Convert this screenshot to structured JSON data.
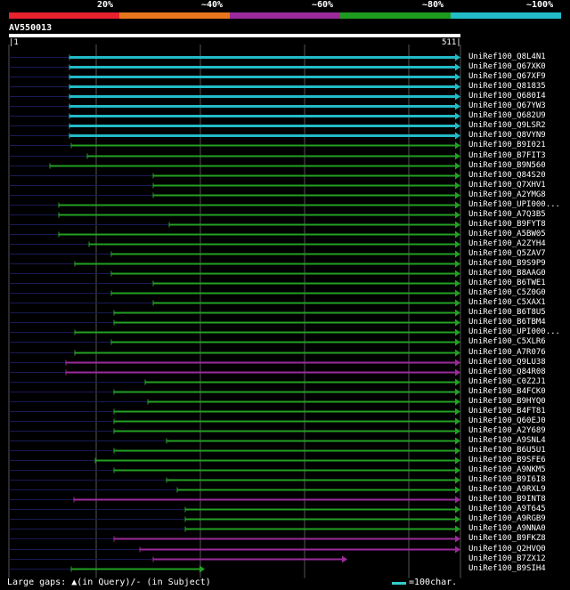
{
  "legend": {
    "segments": [
      {
        "label": "20%",
        "color": "#e8212e"
      },
      {
        "label": "~40%",
        "color": "#e8761c"
      },
      {
        "label": "~60%",
        "color": "#9b2b9b"
      },
      {
        "label": "~80%",
        "color": "#1e9b1e"
      },
      {
        "label": "~100%",
        "color": "#22bbc8"
      }
    ]
  },
  "query": {
    "name": "AV550013",
    "start": "|1",
    "end": "511|"
  },
  "colors": {
    "cyan": "#22bbc8",
    "green": "#22a022",
    "purple": "#9b2b9b",
    "dark": "#1a1a55",
    "grid": "#555555",
    "mark": "#ffff99"
  },
  "hits": [
    {
      "label": "UniRef100_Q8L4N1",
      "color": "cyan",
      "start": 78,
      "end": 517
    },
    {
      "label": "UniRef100_Q67XK0",
      "color": "cyan",
      "start": 78,
      "end": 517
    },
    {
      "label": "UniRef100_Q67XF9",
      "color": "cyan",
      "start": 78,
      "end": 517
    },
    {
      "label": "UniRef100_Q81835",
      "color": "cyan",
      "start": 78,
      "end": 517
    },
    {
      "label": "UniRef100_Q680I4",
      "color": "cyan",
      "start": 78,
      "end": 517
    },
    {
      "label": "UniRef100_Q67YW3",
      "color": "cyan",
      "start": 78,
      "end": 517
    },
    {
      "label": "UniRef100_Q682U9",
      "color": "cyan",
      "start": 78,
      "end": 517
    },
    {
      "label": "UniRef100_Q9LSR2",
      "color": "cyan",
      "start": 78,
      "end": 517
    },
    {
      "label": "UniRef100_Q8VYN9",
      "color": "cyan",
      "start": 78,
      "end": 517
    },
    {
      "label": "UniRef100_B9I021",
      "color": "green",
      "start": 80,
      "end": 517
    },
    {
      "label": "UniRef100_B7FIT3",
      "color": "green",
      "start": 98,
      "end": 517
    },
    {
      "label": "UniRef100_B9N560",
      "color": "green",
      "start": 56,
      "end": 517
    },
    {
      "label": "UniRef100_Q84S20",
      "color": "green",
      "start": 172,
      "end": 517
    },
    {
      "label": "UniRef100_Q7XHV1",
      "color": "green",
      "start": 172,
      "end": 517
    },
    {
      "label": "UniRef100_A2YMG8",
      "color": "green",
      "start": 172,
      "end": 517
    },
    {
      "label": "UniRef100_UPI000...",
      "color": "green",
      "start": 66,
      "end": 517
    },
    {
      "label": "UniRef100_A7Q3B5",
      "color": "green",
      "start": 66,
      "end": 517
    },
    {
      "label": "UniRef100_B9FYT8",
      "color": "green",
      "start": 190,
      "end": 517
    },
    {
      "label": "UniRef100_A5BW05",
      "color": "green",
      "start": 66,
      "end": 517
    },
    {
      "label": "UniRef100_A2ZYH4",
      "color": "green",
      "start": 100,
      "end": 517
    },
    {
      "label": "UniRef100_Q5ZAV7",
      "color": "green",
      "start": 125,
      "end": 517
    },
    {
      "label": "UniRef100_B9S9P9",
      "color": "green",
      "start": 84,
      "end": 517
    },
    {
      "label": "UniRef100_B8AAG0",
      "color": "green",
      "start": 125,
      "end": 517
    },
    {
      "label": "UniRef100_B6TWE1",
      "color": "green",
      "start": 172,
      "end": 517
    },
    {
      "label": "UniRef100_C5Z0G0",
      "color": "green",
      "start": 125,
      "end": 517
    },
    {
      "label": "UniRef100_C5XAX1",
      "color": "green",
      "start": 172,
      "end": 517
    },
    {
      "label": "UniRef100_B6T8U5",
      "color": "green",
      "start": 128,
      "end": 517
    },
    {
      "label": "UniRef100_B6TBM4",
      "color": "green",
      "start": 128,
      "end": 517
    },
    {
      "label": "UniRef100_UPI000...",
      "color": "green",
      "start": 84,
      "end": 517
    },
    {
      "label": "UniRef100_C5XLR6",
      "color": "green",
      "start": 125,
      "end": 517
    },
    {
      "label": "UniRef100_A7R076",
      "color": "green",
      "start": 84,
      "end": 517
    },
    {
      "label": "UniRef100_Q9LU38",
      "color": "purple",
      "start": 74,
      "end": 517
    },
    {
      "label": "UniRef100_Q84R08",
      "color": "purple",
      "start": 74,
      "end": 517
    },
    {
      "label": "UniRef100_C0Z2J1",
      "color": "green",
      "start": 163,
      "end": 517
    },
    {
      "label": "UniRef100_B4FCK0",
      "color": "green",
      "start": 128,
      "end": 517
    },
    {
      "label": "UniRef100_B9HYQ0",
      "color": "green",
      "start": 166,
      "end": 517
    },
    {
      "label": "UniRef100_B4FT81",
      "color": "green",
      "start": 128,
      "end": 517
    },
    {
      "label": "UniRef100_Q60EJ0",
      "color": "green",
      "start": 128,
      "end": 517
    },
    {
      "label": "UniRef100_A2Y689",
      "color": "green",
      "start": 128,
      "end": 517
    },
    {
      "label": "UniRef100_A9SNL4",
      "color": "green",
      "start": 187,
      "end": 517
    },
    {
      "label": "UniRef100_B6U5U1",
      "color": "green",
      "start": 128,
      "end": 517
    },
    {
      "label": "UniRef100_B9SFE6",
      "color": "green",
      "start": 107,
      "end": 517
    },
    {
      "label": "UniRef100_A9NKM5",
      "color": "green",
      "start": 128,
      "end": 517
    },
    {
      "label": "UniRef100_B9I6I8",
      "color": "green",
      "start": 187,
      "end": 517
    },
    {
      "label": "UniRef100_A9RXL9",
      "color": "green",
      "start": 199,
      "end": 517
    },
    {
      "label": "UniRef100_B9INT8",
      "color": "purple",
      "start": 83,
      "end": 517
    },
    {
      "label": "UniRef100_A9T645",
      "color": "green",
      "start": 208,
      "end": 517
    },
    {
      "label": "UniRef100_A9RGB9",
      "color": "green",
      "start": 208,
      "end": 517
    },
    {
      "label": "UniRef100_A9NNA0",
      "color": "green",
      "start": 208,
      "end": 517
    },
    {
      "label": "UniRef100_B9FKZ8",
      "color": "purple",
      "start": 128,
      "end": 517
    },
    {
      "label": "UniRef100_Q2HVQ0",
      "color": "purple",
      "start": 157,
      "end": 517
    },
    {
      "label": "UniRef100_B7ZX12",
      "color": "purple",
      "start": 172,
      "end": 390
    },
    {
      "label": "UniRef100_B9SIH4",
      "color": "green",
      "start": 80,
      "end": 230
    }
  ],
  "footer": {
    "note": "Large gaps: ▲(in Query)/- (in Subject)",
    "scale": "=100char."
  }
}
